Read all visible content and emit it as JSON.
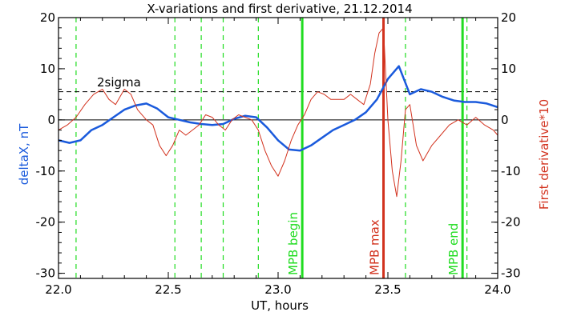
{
  "chart_data": {
    "type": "line",
    "title": "X-variations and first derivative, 21.12.2014",
    "xlabel": "UT, hours",
    "ylabel_left": "deltaX, nT",
    "ylabel_right": "First derivative*10",
    "xlim": [
      22.0,
      24.0
    ],
    "ylim": [
      -31,
      20
    ],
    "x_ticks": [
      22.0,
      22.5,
      23.0,
      23.5,
      24.0
    ],
    "x_tick_labels": [
      "22.0",
      "22.5",
      "23.0",
      "23.5",
      "24.0"
    ],
    "y_ticks": [
      20,
      10,
      0,
      -10,
      -20,
      -30
    ],
    "y_tick_labels": [
      "20",
      "10",
      "0",
      "-10",
      "-20",
      "-30"
    ],
    "grid": false,
    "colors": {
      "deltaX": "#1a5adc",
      "derivative": "#d2321e",
      "event_lines": "#20dc20",
      "max_line": "#d2321e",
      "axes": "#000000"
    },
    "threshold": {
      "y": 5.5,
      "label": "2sigma"
    },
    "zero_line": 0,
    "dashed_verticals": [
      22.08,
      22.53,
      22.65,
      22.75,
      22.91,
      23.58,
      23.86
    ],
    "events": [
      {
        "x": 23.11,
        "label": "MPB begin",
        "color": "#20dc20"
      },
      {
        "x": 23.48,
        "label": "MPB max",
        "color": "#d2321e"
      },
      {
        "x": 23.84,
        "label": "MPB end",
        "color": "#20dc20"
      }
    ],
    "series": [
      {
        "key": "deltaX",
        "x": [
          22.0,
          22.05,
          22.1,
          22.15,
          22.2,
          22.25,
          22.3,
          22.35,
          22.4,
          22.45,
          22.5,
          22.55,
          22.6,
          22.65,
          22.7,
          22.75,
          22.8,
          22.85,
          22.9,
          22.95,
          23.0,
          23.05,
          23.1,
          23.15,
          23.2,
          23.25,
          23.3,
          23.35,
          23.4,
          23.45,
          23.5,
          23.55,
          23.6,
          23.65,
          23.7,
          23.75,
          23.8,
          23.85,
          23.9,
          23.95,
          24.0
        ],
        "y": [
          -4,
          -4.5,
          -4,
          -2,
          -1,
          0.5,
          2,
          2.8,
          3.2,
          2.2,
          0.5,
          0,
          -0.5,
          -0.8,
          -1,
          -0.8,
          0.2,
          0.8,
          0.5,
          -1.5,
          -4,
          -5.8,
          -6,
          -5,
          -3.5,
          -2,
          -1,
          0,
          1.5,
          4,
          8,
          10.5,
          5,
          6,
          5.5,
          4.5,
          3.8,
          3.5,
          3.5,
          3.2,
          2.5
        ]
      },
      {
        "key": "derivative",
        "x": [
          22.0,
          22.04,
          22.08,
          22.12,
          22.16,
          22.2,
          22.23,
          22.26,
          22.3,
          22.33,
          22.36,
          22.4,
          22.43,
          22.46,
          22.49,
          22.52,
          22.55,
          22.58,
          22.61,
          22.64,
          22.67,
          22.7,
          22.73,
          22.76,
          22.79,
          22.82,
          22.85,
          22.88,
          22.91,
          22.94,
          22.97,
          23.0,
          23.03,
          23.06,
          23.09,
          23.12,
          23.15,
          23.18,
          23.21,
          23.24,
          23.27,
          23.3,
          23.33,
          23.36,
          23.39,
          23.42,
          23.44,
          23.46,
          23.48,
          23.5,
          23.52,
          23.54,
          23.56,
          23.58,
          23.6,
          23.63,
          23.66,
          23.7,
          23.74,
          23.78,
          23.82,
          23.86,
          23.9,
          23.94,
          23.98,
          24.0
        ],
        "y": [
          -2,
          -1,
          0.5,
          3,
          5,
          6,
          4,
          3,
          6,
          5,
          2,
          0,
          -1,
          -5,
          -7,
          -5,
          -2,
          -3,
          -2,
          -1,
          1,
          0.5,
          -1,
          -2,
          0,
          1,
          0.5,
          0,
          -2,
          -6,
          -9,
          -11,
          -8,
          -4,
          -1,
          1,
          4,
          5.5,
          5,
          4,
          4,
          4,
          5,
          4,
          3,
          7,
          13,
          17,
          18,
          0,
          -10,
          -15,
          -8,
          2,
          3,
          -5,
          -8,
          -5,
          -3,
          -1,
          0,
          -1,
          0.5,
          -1,
          -2,
          -3
        ]
      }
    ]
  }
}
